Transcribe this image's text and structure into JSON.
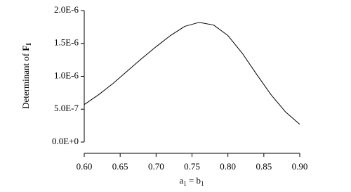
{
  "chart_data": {
    "type": "line",
    "xlabel_parts": [
      "a",
      "1",
      " = b",
      "1"
    ],
    "ylabel_parts": [
      "Determinant of ",
      "F",
      "I"
    ],
    "x": [
      0.6,
      0.62,
      0.64,
      0.66,
      0.68,
      0.7,
      0.72,
      0.74,
      0.76,
      0.78,
      0.8,
      0.82,
      0.84,
      0.86,
      0.88,
      0.9
    ],
    "values": [
      5.7e-07,
      7.2e-07,
      8.9e-07,
      1.08e-06,
      1.27e-06,
      1.45e-06,
      1.62e-06,
      1.76e-06,
      1.82e-06,
      1.78e-06,
      1.62e-06,
      1.35e-06,
      1.03e-06,
      7.2e-07,
      4.6e-07,
      2.7e-07
    ],
    "color": "#000000",
    "xlim": [
      0.6,
      0.9
    ],
    "ylim": [
      0,
      2e-06
    ],
    "xticks": [
      {
        "value": 0.6,
        "label": "0.60"
      },
      {
        "value": 0.65,
        "label": "0.65"
      },
      {
        "value": 0.7,
        "label": "0.70"
      },
      {
        "value": 0.75,
        "label": "0.75"
      },
      {
        "value": 0.8,
        "label": "0.80"
      },
      {
        "value": 0.85,
        "label": "0.85"
      },
      {
        "value": 0.9,
        "label": "0.90"
      }
    ],
    "yticks": [
      {
        "value": 0,
        "label": "0.0E+0"
      },
      {
        "value": 5e-07,
        "label": "5.0E-7"
      },
      {
        "value": 1e-06,
        "label": "1.0E-6"
      },
      {
        "value": 1.5e-06,
        "label": "1.5E-6"
      },
      {
        "value": 2e-06,
        "label": "2.0E-6"
      }
    ],
    "grid": false
  }
}
